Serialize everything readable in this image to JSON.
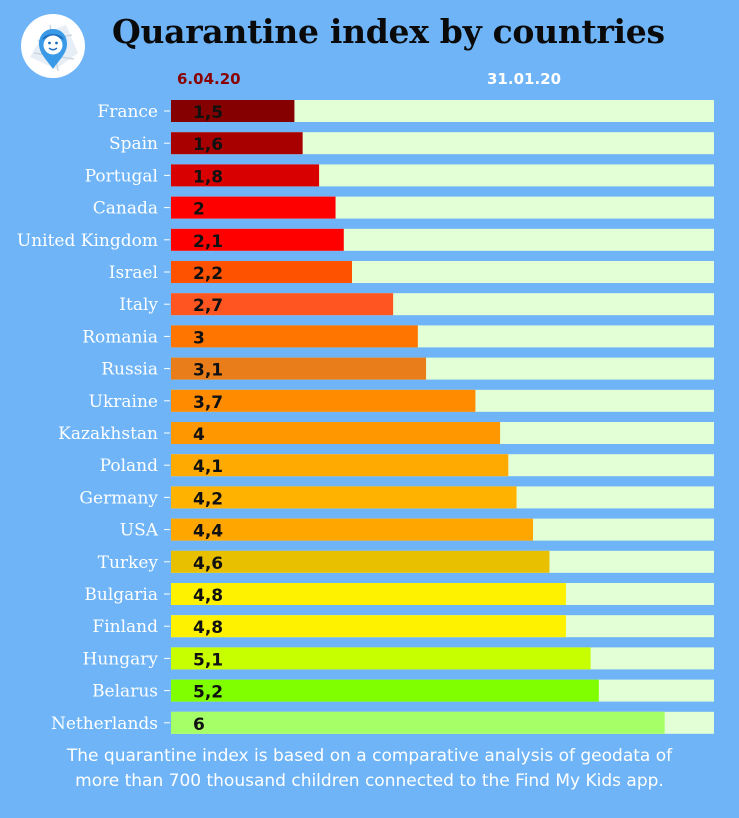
{
  "title": "Quarantine index by countries",
  "legend": {
    "current": "6.04.20",
    "baseline": "31.01.20"
  },
  "footnote": {
    "line1": "The quarantine index is based on a comparative analysis  of geodata of",
    "line2": "more than 700 thousand children connected to the Find My Kids app."
  },
  "logo": {
    "icon": "find-my-kids-logo-icon"
  },
  "chart_data": {
    "type": "bar",
    "orientation": "horizontal",
    "title": "Quarantine index by countries",
    "categories": [
      "France",
      "Spain",
      "Portugal",
      "Canada",
      "United Kingdom",
      "Israel",
      "Italy",
      "Romania",
      "Russia",
      "Ukraine",
      "Kazakhstan",
      "Poland",
      "Germany",
      "USA",
      "Turkey",
      "Bulgaria",
      "Finland",
      "Hungary",
      "Belarus",
      "Netherlands"
    ],
    "series": [
      {
        "name": "6.04.20",
        "values": [
          1.5,
          1.6,
          1.8,
          2,
          2.1,
          2.2,
          2.7,
          3,
          3.1,
          3.7,
          4,
          4.1,
          4.2,
          4.4,
          4.6,
          4.8,
          4.8,
          5.1,
          5.2,
          6
        ],
        "labels": [
          "1,5",
          "1,6",
          "1,8",
          "2",
          "2,1",
          "2,2",
          "2,7",
          "3",
          "3,1",
          "3,7",
          "4",
          "4,1",
          "4,2",
          "4,4",
          "4,6",
          "4,8",
          "4,8",
          "5,1",
          "5,2",
          "6"
        ],
        "colors": [
          "#850000",
          "#a80000",
          "#d80000",
          "#ff0000",
          "#ff0000",
          "#ff5200",
          "#ff5520",
          "#ff7500",
          "#e87d1a",
          "#ff8c00",
          "#ff9800",
          "#ffaa00",
          "#ffb300",
          "#ffa600",
          "#e8c000",
          "#fff200",
          "#fff200",
          "#c8ff00",
          "#80ff00",
          "#a6ff66"
        ]
      },
      {
        "name": "31.01.20",
        "values": [
          6.6,
          6.6,
          6.6,
          6.6,
          6.6,
          6.6,
          6.6,
          6.6,
          6.6,
          6.6,
          6.6,
          6.6,
          6.6,
          6.6,
          6.6,
          6.6,
          6.6,
          6.6,
          6.6,
          6.6
        ],
        "color": "#e3ffd6"
      }
    ],
    "xlim": [
      0,
      6.6
    ],
    "grid": false,
    "legend_position": "top"
  }
}
